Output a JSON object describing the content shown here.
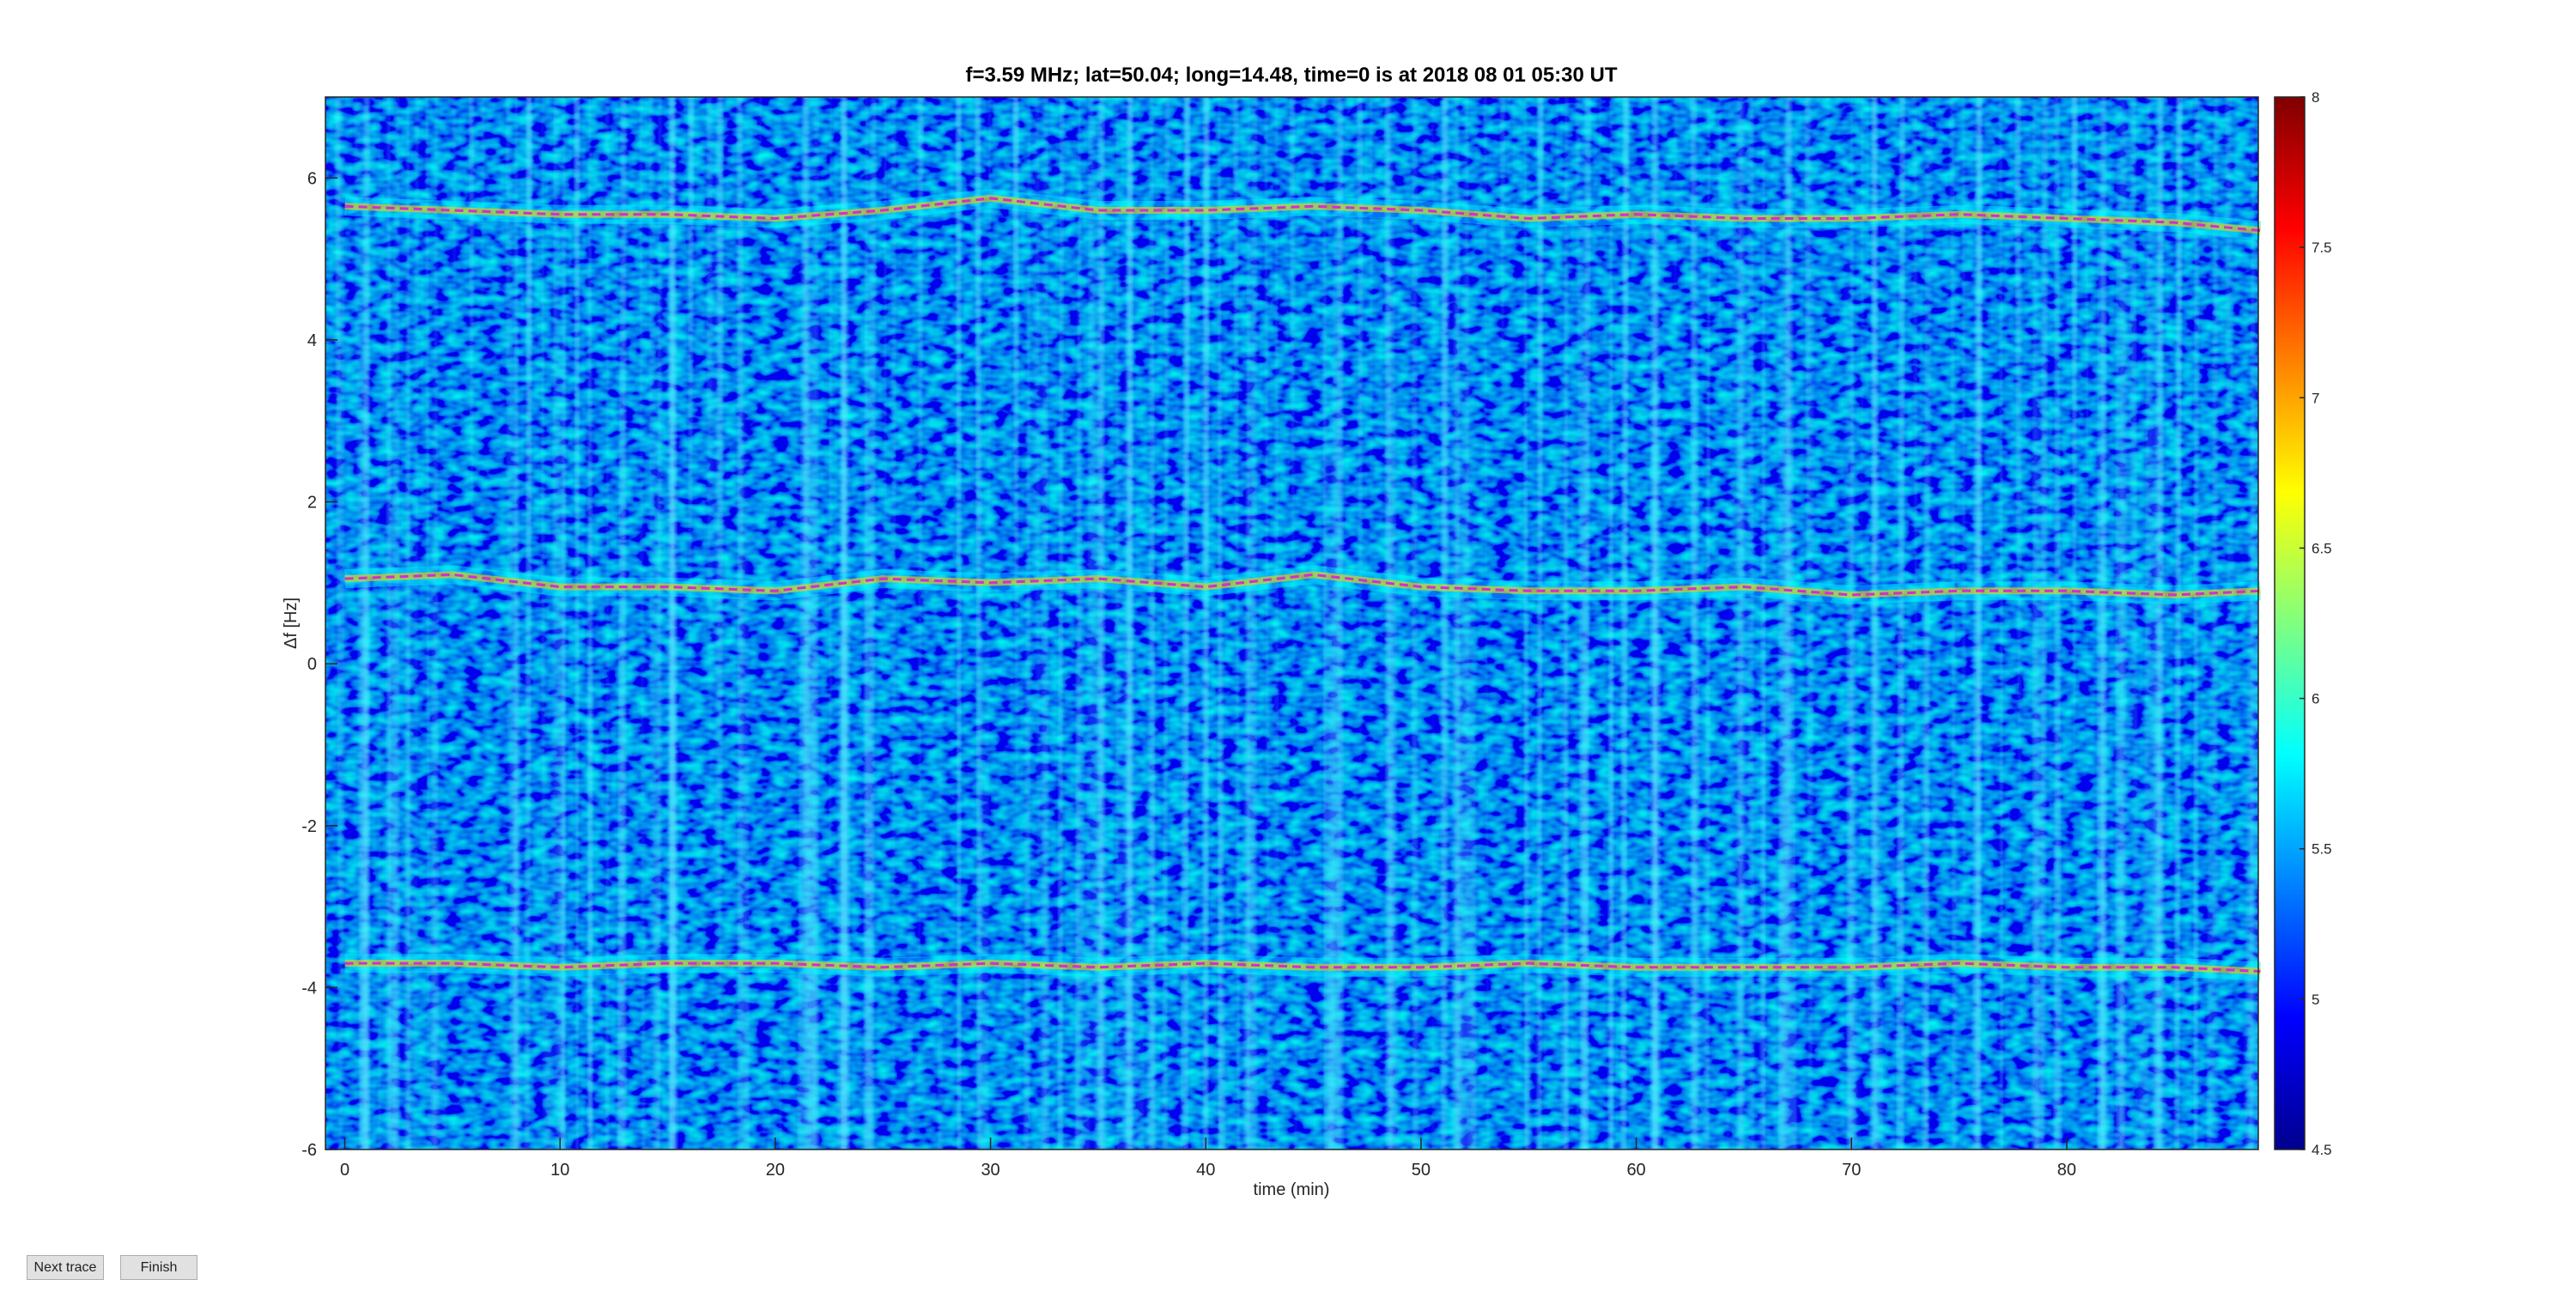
{
  "chart_data": {
    "type": "spectrogram",
    "title": "f=3.59 MHz;  lat=50.04; long=14.48, time=0 is at 2018 08 01 05:30 UT",
    "xlabel": "time (min)",
    "ylabel": "Δf [Hz]",
    "xlim": [
      -0.9,
      88.9
    ],
    "xticks": [
      0,
      10,
      20,
      30,
      40,
      50,
      60,
      70,
      80
    ],
    "ylim": [
      -6,
      7
    ],
    "yticks": [
      -6,
      -4,
      -2,
      0,
      2,
      4,
      6
    ],
    "colormap": "jet",
    "colorbar": {
      "lim": [
        4.5,
        8
      ],
      "ticks": [
        4.5,
        5,
        5.5,
        6,
        6.5,
        7,
        7.5,
        8
      ]
    },
    "x": [
      0,
      5,
      10,
      15,
      20,
      25,
      30,
      35,
      40,
      45,
      50,
      55,
      60,
      65,
      70,
      75,
      80,
      85,
      89
    ],
    "series": [
      {
        "color": "#cc33cc",
        "values": [
          5.65,
          5.6,
          5.55,
          5.55,
          5.5,
          5.6,
          5.75,
          5.6,
          5.6,
          5.65,
          5.6,
          5.5,
          5.55,
          5.5,
          5.5,
          5.55,
          5.5,
          5.45,
          5.35
        ]
      },
      {
        "color": "#cc33cc",
        "values": [
          1.05,
          1.1,
          0.95,
          0.95,
          0.9,
          1.05,
          1.0,
          1.05,
          0.95,
          1.1,
          0.95,
          0.9,
          0.9,
          0.95,
          0.85,
          0.9,
          0.9,
          0.85,
          0.9
        ]
      },
      {
        "color": "#cc33cc",
        "values": [
          -3.7,
          -3.7,
          -3.75,
          -3.7,
          -3.7,
          -3.75,
          -3.7,
          -3.75,
          -3.7,
          -3.75,
          -3.75,
          -3.7,
          -3.75,
          -3.75,
          -3.75,
          -3.7,
          -3.75,
          -3.75,
          -3.8
        ]
      }
    ]
  },
  "buttons": [
    "Next trace",
    "Finish"
  ]
}
